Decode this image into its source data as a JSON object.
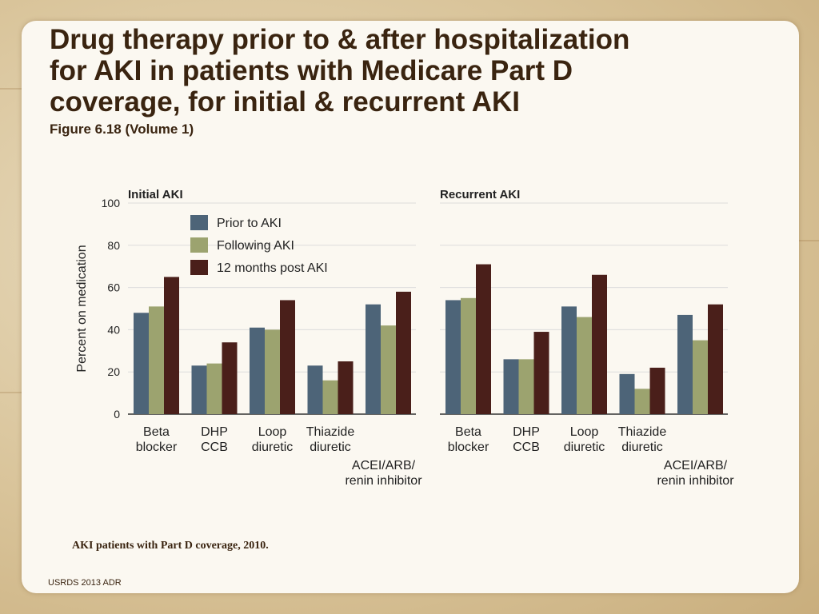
{
  "slide": {
    "title_lines": [
      "Drug therapy prior to & after hospitalization",
      "for AKI in patients with Medicare Part D",
      "coverage, for initial & recurrent AKI"
    ],
    "subtitle": "Figure 6.18 (Volume 1)",
    "caption": "AKI patients with Part D coverage, 2010.",
    "footer": "USRDS 2013 ADR"
  },
  "colors": {
    "prior": "#4d6478",
    "following": "#9ca36f",
    "post12": "#4a1f1a",
    "text": "#3a2410"
  },
  "chart_data": {
    "type": "bar",
    "ylabel": "Percent on medication",
    "ylim": [
      0,
      100
    ],
    "yticks": [
      0,
      20,
      40,
      60,
      80,
      100
    ],
    "grid": true,
    "legend": [
      {
        "name": "Prior to AKI",
        "color": "#4d6478"
      },
      {
        "name": "Following AKI",
        "color": "#9ca36f"
      },
      {
        "name": "12 months post AKI",
        "color": "#4a1f1a"
      }
    ],
    "legend_position": "top-left of first panel",
    "categories": [
      [
        "Beta",
        "blocker"
      ],
      [
        "DHP",
        "CCB"
      ],
      [
        "Loop",
        "diuretic"
      ],
      [
        "Thiazide",
        "diuretic"
      ],
      [
        "ACEI/ARB/",
        "renin inhibitor"
      ]
    ],
    "panels": [
      {
        "title": "Initial AKI",
        "series": [
          {
            "name": "Prior to AKI",
            "values": [
              48,
              23,
              41,
              23,
              52
            ]
          },
          {
            "name": "Following AKI",
            "values": [
              51,
              24,
              40,
              16,
              42
            ]
          },
          {
            "name": "12 months post AKI",
            "values": [
              65,
              34,
              54,
              25,
              58
            ]
          }
        ]
      },
      {
        "title": "Recurrent AKI",
        "series": [
          {
            "name": "Prior to AKI",
            "values": [
              54,
              26,
              51,
              19,
              47
            ]
          },
          {
            "name": "Following AKI",
            "values": [
              55,
              26,
              46,
              12,
              35
            ]
          },
          {
            "name": "12 months post AKI",
            "values": [
              71,
              39,
              66,
              22,
              52
            ]
          }
        ]
      }
    ]
  }
}
